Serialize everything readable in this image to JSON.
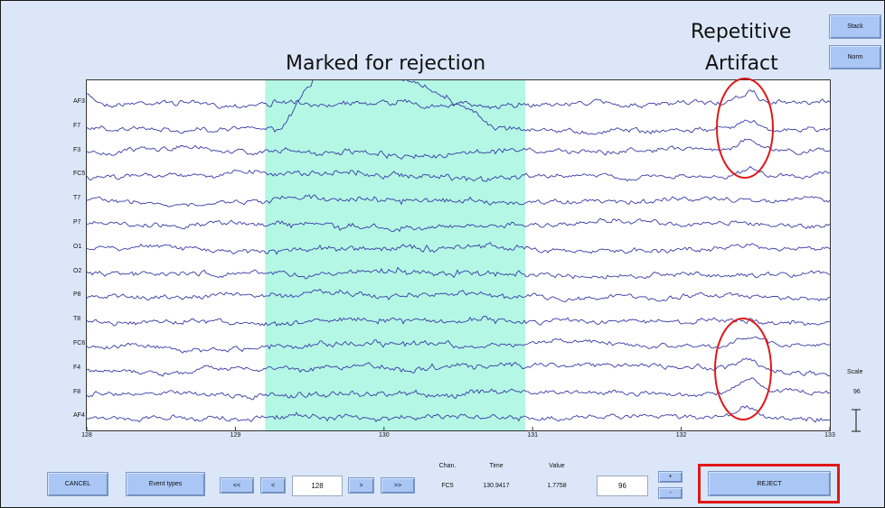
{
  "annotations": {
    "marked_label": "Marked for rejection",
    "repetitive_line1": "Repetitive",
    "repetitive_line2": "Artifact"
  },
  "side_buttons": {
    "stack": "Stack",
    "norm": "Norm"
  },
  "scale": {
    "label": "Scale",
    "value": "96"
  },
  "channels": [
    "AF3",
    "F7",
    "F3",
    "FC5",
    "T7",
    "P7",
    "O1",
    "O2",
    "P8",
    "T8",
    "FC6",
    "F4",
    "F8",
    "AF4"
  ],
  "x_ticks": [
    "128",
    "129",
    "130",
    "131",
    "132",
    "133"
  ],
  "marked_region": {
    "start": 129.2,
    "end": 130.95,
    "color": "#b3f7e4"
  },
  "time_range": [
    128,
    133
  ],
  "bottom": {
    "cancel": "CANCEL",
    "event_types": "Event types",
    "prev_fast": "<<",
    "prev": "<",
    "position": "128",
    "next": ">",
    "next_fast": ">>",
    "chan_header": "Chan.",
    "time_header": "Time",
    "value_header": "Value",
    "chan_value": "FC5",
    "time_value": "130.9417",
    "value_value": "1.7758",
    "scale_field": "96",
    "plus": "+",
    "minus": "-",
    "reject": "REJECT"
  },
  "colors": {
    "trace": "#3a3aa8",
    "highlight_box": "#e01818",
    "background": "#dbe7f8"
  }
}
